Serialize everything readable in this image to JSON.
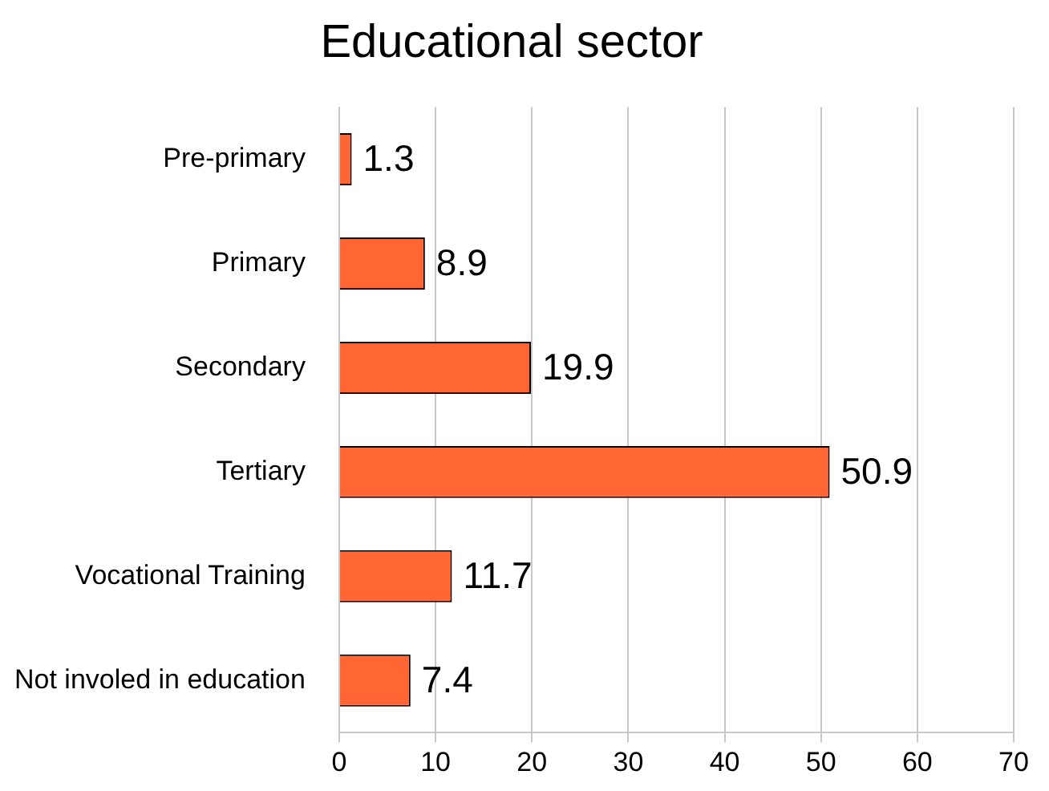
{
  "chart_data": {
    "type": "bar",
    "title": "Educational sector",
    "orientation": "horizontal",
    "categories": [
      "Pre-primary",
      "Primary",
      "Secondary",
      "Tertiary",
      "Vocational Training",
      "Not involed in education"
    ],
    "values": [
      1.3,
      8.9,
      19.9,
      50.9,
      11.7,
      7.4
    ],
    "color": "#ff6633",
    "xlim": [
      0,
      70
    ],
    "xticks": [
      0,
      10,
      20,
      30,
      40,
      50,
      60,
      70
    ],
    "grid": "x",
    "legend": false,
    "data_labels": true
  }
}
